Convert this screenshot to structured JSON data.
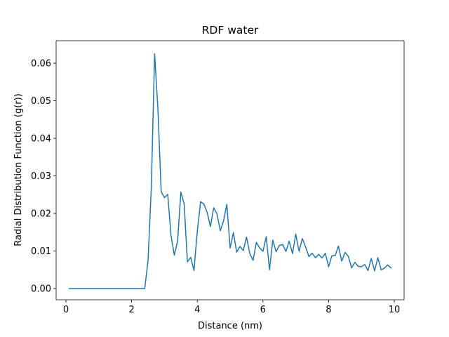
{
  "chart_data": {
    "type": "line",
    "title": "RDF water",
    "xlabel": "Distance (nm)",
    "ylabel": "Radial Distribution Function (g(r))",
    "xlim": [
      -0.3,
      10.3
    ],
    "ylim": [
      -0.003,
      0.066
    ],
    "xticks": [
      0,
      2,
      4,
      6,
      8,
      10
    ],
    "xtick_labels": [
      "0",
      "2",
      "4",
      "6",
      "8",
      "10"
    ],
    "yticks": [
      0.0,
      0.01,
      0.02,
      0.03,
      0.04,
      0.05,
      0.06
    ],
    "ytick_labels": [
      "0.00",
      "0.01",
      "0.02",
      "0.03",
      "0.04",
      "0.05",
      "0.06"
    ],
    "grid": false,
    "series": [
      {
        "color": "#1f77b4",
        "x": [
          0.1,
          0.2,
          0.3,
          0.4,
          0.5,
          0.6,
          0.7,
          0.8,
          0.9,
          1.0,
          1.1,
          1.2,
          1.3,
          1.4,
          1.5,
          1.6,
          1.7,
          1.8,
          1.9,
          2.0,
          2.1,
          2.2,
          2.3,
          2.4,
          2.5,
          2.6,
          2.7,
          2.8,
          2.9,
          3.0,
          3.1,
          3.2,
          3.3,
          3.4,
          3.5,
          3.6,
          3.7,
          3.8,
          3.9,
          4.0,
          4.1,
          4.2,
          4.3,
          4.4,
          4.5,
          4.6,
          4.7,
          4.8,
          4.9,
          5.0,
          5.1,
          5.2,
          5.3,
          5.4,
          5.5,
          5.6,
          5.7,
          5.8,
          5.9,
          6.0,
          6.1,
          6.2,
          6.3,
          6.4,
          6.5,
          6.6,
          6.7,
          6.8,
          6.9,
          7.0,
          7.1,
          7.2,
          7.3,
          7.4,
          7.5,
          7.6,
          7.7,
          7.8,
          7.9,
          8.0,
          8.1,
          8.2,
          8.3,
          8.4,
          8.5,
          8.6,
          8.7,
          8.8,
          8.9,
          9.0,
          9.1,
          9.2,
          9.3,
          9.4,
          9.5,
          9.6,
          9.7,
          9.8,
          9.9
        ],
        "y": [
          0,
          0,
          0,
          0,
          0,
          0,
          0,
          0,
          0,
          0,
          0,
          0,
          0,
          0,
          0,
          0,
          0,
          0,
          0,
          0,
          0,
          0,
          0,
          0,
          0.0075,
          0.027,
          0.0625,
          0.048,
          0.0258,
          0.0242,
          0.0251,
          0.0141,
          0.0089,
          0.0126,
          0.0257,
          0.0225,
          0.0071,
          0.0083,
          0.0048,
          0.0152,
          0.0231,
          0.0225,
          0.0203,
          0.0165,
          0.0215,
          0.0199,
          0.0154,
          0.018,
          0.0224,
          0.0108,
          0.0149,
          0.0097,
          0.0112,
          0.0101,
          0.0137,
          0.0093,
          0.0075,
          0.0123,
          0.0108,
          0.0099,
          0.0138,
          0.005,
          0.0129,
          0.0098,
          0.0115,
          0.0117,
          0.0099,
          0.0126,
          0.0093,
          0.0145,
          0.0099,
          0.0133,
          0.0111,
          0.0085,
          0.0094,
          0.0082,
          0.0091,
          0.0081,
          0.0094,
          0.0058,
          0.0087,
          0.0088,
          0.0113,
          0.0073,
          0.0096,
          0.0086,
          0.0055,
          0.007,
          0.0059,
          0.0058,
          0.0064,
          0.0048,
          0.008,
          0.0047,
          0.0082,
          0.005,
          0.0054,
          0.0063,
          0.0055
        ]
      }
    ]
  }
}
